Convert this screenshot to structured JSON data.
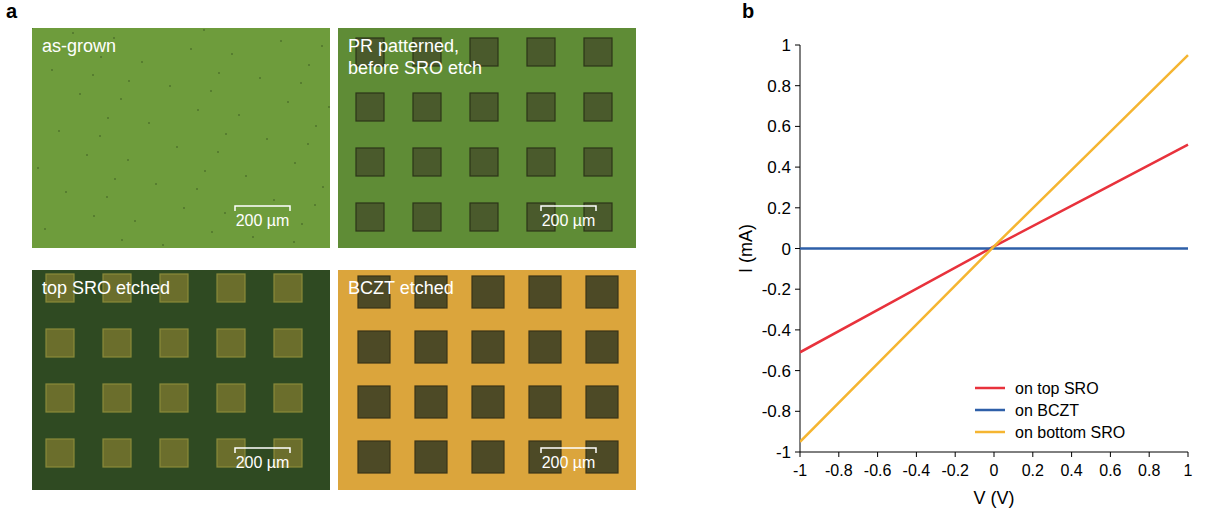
{
  "panel_letters": [
    "a",
    "b"
  ],
  "panel_a": {
    "images": [
      {
        "label_lines": [
          "as-grown"
        ],
        "scale_bar": "200 µm"
      },
      {
        "label_lines": [
          "PR patterned,",
          "before SRO etch"
        ],
        "scale_bar": "200 µm"
      },
      {
        "label_lines": [
          "top SRO etched"
        ],
        "scale_bar": "200 µm"
      },
      {
        "label_lines": [
          "BCZT etched"
        ],
        "scale_bar": "200 µm"
      }
    ]
  },
  "chart_data": {
    "type": "line",
    "x_label": "V (V)",
    "y_label": "I (mA)",
    "x": [
      -1,
      -0.5,
      0,
      0.5,
      1
    ],
    "series": [
      {
        "name": "on top SRO",
        "color": "#e8323c",
        "values": [
          -0.51,
          -0.25,
          0.01,
          0.26,
          0.51
        ]
      },
      {
        "name": "on BCZT",
        "color": "#2e5fa8",
        "values": [
          0,
          0,
          0,
          0,
          0
        ]
      },
      {
        "name": "on bottom SRO",
        "color": "#f5b531",
        "values": [
          -0.95,
          -0.47,
          0.01,
          0.48,
          0.95
        ]
      }
    ],
    "xlim": [
      -1,
      1
    ],
    "ylim": [
      -1,
      1
    ],
    "xticks": [
      -1,
      -0.8,
      -0.6,
      -0.4,
      -0.2,
      0,
      0.2,
      0.4,
      0.6,
      0.8,
      1
    ],
    "yticks": [
      -1,
      -0.8,
      -0.6,
      -0.4,
      -0.2,
      0,
      0.2,
      0.4,
      0.6,
      0.8,
      1
    ],
    "grid": false,
    "legend": "lower right"
  }
}
